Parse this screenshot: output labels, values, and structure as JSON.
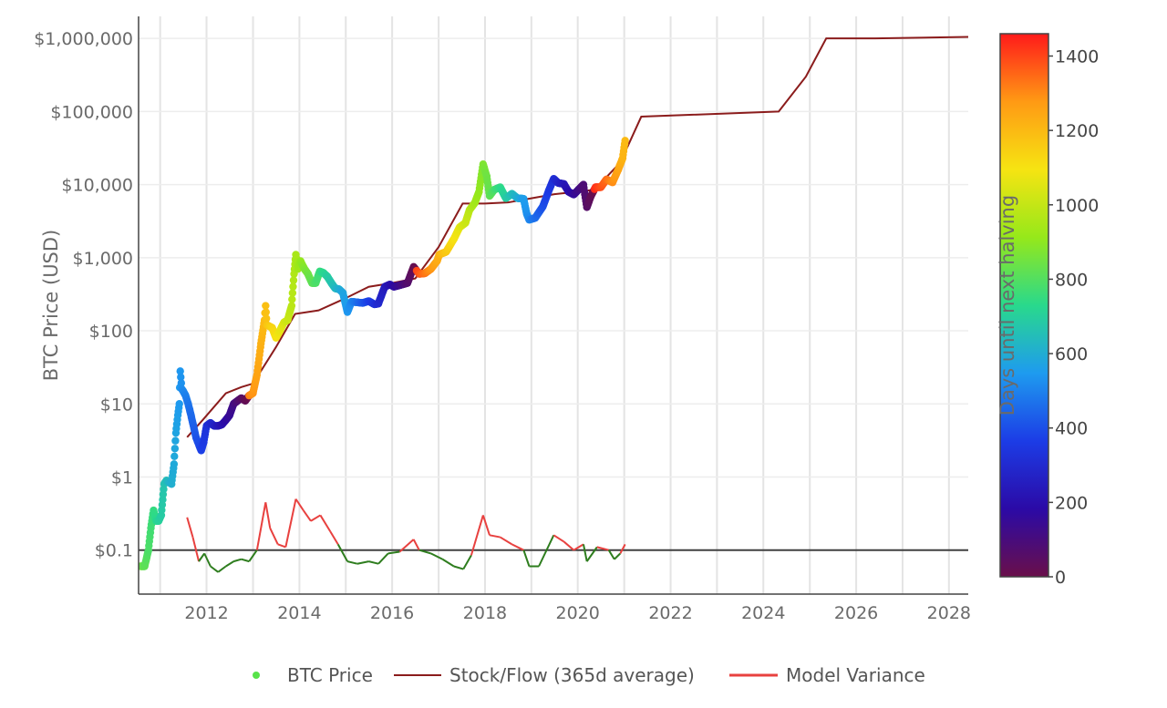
{
  "chart_data": {
    "type": "scatter",
    "title": "",
    "xlabel": "",
    "ylabel": "BTC Price (USD)",
    "y_scale": "log",
    "xlim": [
      "2010-07-15",
      "2028-06-01"
    ],
    "ylim": [
      0.025,
      2000000
    ],
    "x_ticks": [
      "2012",
      "2014",
      "2016",
      "2018",
      "2020",
      "2022",
      "2024",
      "2026",
      "2028"
    ],
    "y_ticks": [
      {
        "value": 0.1,
        "label": "$0.1"
      },
      {
        "value": 1,
        "label": "$1"
      },
      {
        "value": 10,
        "label": "$10"
      },
      {
        "value": 100,
        "label": "$100"
      },
      {
        "value": 1000,
        "label": "$1,000"
      },
      {
        "value": 10000,
        "label": "$10,000"
      },
      {
        "value": 100000,
        "label": "$100,000"
      },
      {
        "value": 1000000,
        "label": "$1,000,000"
      }
    ],
    "grid": true,
    "reference_line": {
      "y": 0.1,
      "color": "#404040"
    },
    "colorbar": {
      "title": "Days until next halving",
      "min": 0,
      "max": 1460,
      "ticks": [
        "0",
        "200",
        "400",
        "600",
        "800",
        "1000",
        "1200",
        "1400"
      ],
      "colors": [
        "#6a0f4a",
        "#2b0aa6",
        "#1c3ce6",
        "#1e9bef",
        "#29d98c",
        "#96e81a",
        "#f6e412",
        "#ff9a14",
        "#ff1a1a"
      ]
    },
    "legend": {
      "position": "bottom"
    },
    "series": [
      {
        "name": "BTC Price",
        "kind": "scatter",
        "color_by": "days until next halving",
        "legend_color": "#58e34a",
        "points": [
          [
            "2010-08-01",
            0.06
          ],
          [
            "2010-09-01",
            0.06
          ],
          [
            "2010-10-01",
            0.1
          ],
          [
            "2010-10-20",
            0.2
          ],
          [
            "2010-11-10",
            0.35
          ],
          [
            "2010-12-01",
            0.25
          ],
          [
            "2010-12-20",
            0.25
          ],
          [
            "2011-01-10",
            0.3
          ],
          [
            "2011-02-01",
            0.8
          ],
          [
            "2011-02-20",
            0.9
          ],
          [
            "2011-03-10",
            0.85
          ],
          [
            "2011-04-01",
            0.8
          ],
          [
            "2011-04-20",
            1.5
          ],
          [
            "2011-05-05",
            4
          ],
          [
            "2011-05-20",
            7
          ],
          [
            "2011-06-01",
            10
          ],
          [
            "2011-06-08",
            28
          ],
          [
            "2011-06-20",
            16
          ],
          [
            "2011-07-01",
            15
          ],
          [
            "2011-07-20",
            13
          ],
          [
            "2011-08-10",
            10
          ],
          [
            "2011-09-01",
            7
          ],
          [
            "2011-09-20",
            5
          ],
          [
            "2011-10-10",
            3.5
          ],
          [
            "2011-11-01",
            2.8
          ],
          [
            "2011-11-20",
            2.3
          ],
          [
            "2011-12-10",
            3
          ],
          [
            "2012-01-01",
            5
          ],
          [
            "2012-02-01",
            5.5
          ],
          [
            "2012-03-01",
            5
          ],
          [
            "2012-04-01",
            5
          ],
          [
            "2012-05-01",
            5.2
          ],
          [
            "2012-06-01",
            6
          ],
          [
            "2012-07-01",
            7
          ],
          [
            "2012-08-01",
            10
          ],
          [
            "2012-09-01",
            11
          ],
          [
            "2012-10-01",
            12
          ],
          [
            "2012-11-01",
            11
          ],
          [
            "2012-12-01",
            13
          ],
          [
            "2013-01-01",
            14
          ],
          [
            "2013-02-01",
            25
          ],
          [
            "2013-03-01",
            60
          ],
          [
            "2013-04-01",
            140
          ],
          [
            "2013-04-10",
            220
          ],
          [
            "2013-04-20",
            120
          ],
          [
            "2013-05-10",
            115
          ],
          [
            "2013-06-01",
            110
          ],
          [
            "2013-07-01",
            80
          ],
          [
            "2013-08-01",
            100
          ],
          [
            "2013-09-01",
            130
          ],
          [
            "2013-10-01",
            140
          ],
          [
            "2013-11-01",
            220
          ],
          [
            "2013-11-20",
            600
          ],
          [
            "2013-12-04",
            1100
          ],
          [
            "2013-12-20",
            700
          ],
          [
            "2014-01-10",
            900
          ],
          [
            "2014-02-10",
            700
          ],
          [
            "2014-03-10",
            600
          ],
          [
            "2014-04-10",
            450
          ],
          [
            "2014-05-10",
            450
          ],
          [
            "2014-06-10",
            650
          ],
          [
            "2014-07-10",
            620
          ],
          [
            "2014-08-10",
            550
          ],
          [
            "2014-09-10",
            450
          ],
          [
            "2014-10-10",
            380
          ],
          [
            "2014-11-10",
            370
          ],
          [
            "2014-12-10",
            330
          ],
          [
            "2015-01-14",
            180
          ],
          [
            "2015-02-15",
            250
          ],
          [
            "2015-04-01",
            245
          ],
          [
            "2015-05-15",
            240
          ],
          [
            "2015-07-01",
            255
          ],
          [
            "2015-08-15",
            230
          ],
          [
            "2015-09-15",
            235
          ],
          [
            "2015-11-04",
            400
          ],
          [
            "2015-12-15",
            430
          ],
          [
            "2016-01-15",
            400
          ],
          [
            "2016-03-01",
            420
          ],
          [
            "2016-05-01",
            450
          ],
          [
            "2016-06-18",
            750
          ],
          [
            "2016-08-01",
            600
          ],
          [
            "2016-09-15",
            610
          ],
          [
            "2016-11-01",
            700
          ],
          [
            "2016-12-20",
            900
          ],
          [
            "2017-01-05",
            1100
          ],
          [
            "2017-03-01",
            1200
          ],
          [
            "2017-05-01",
            1800
          ],
          [
            "2017-06-15",
            2600
          ],
          [
            "2017-08-01",
            3000
          ],
          [
            "2017-09-01",
            4500
          ],
          [
            "2017-10-15",
            5700
          ],
          [
            "2017-11-15",
            8000
          ],
          [
            "2017-12-17",
            19000
          ],
          [
            "2018-01-15",
            13000
          ],
          [
            "2018-02-06",
            7000
          ],
          [
            "2018-03-15",
            8500
          ],
          [
            "2018-05-01",
            9200
          ],
          [
            "2018-06-15",
            6500
          ],
          [
            "2018-08-01",
            7500
          ],
          [
            "2018-09-15",
            6500
          ],
          [
            "2018-11-01",
            6400
          ],
          [
            "2018-11-25",
            4000
          ],
          [
            "2018-12-15",
            3300
          ],
          [
            "2019-02-01",
            3500
          ],
          [
            "2019-04-01",
            5000
          ],
          [
            "2019-05-15",
            8000
          ],
          [
            "2019-06-26",
            12000
          ],
          [
            "2019-08-01",
            10500
          ],
          [
            "2019-09-15",
            10200
          ],
          [
            "2019-10-20",
            8000
          ],
          [
            "2019-12-01",
            7300
          ],
          [
            "2020-01-15",
            8800
          ],
          [
            "2020-02-15",
            10000
          ],
          [
            "2020-03-13",
            4900
          ],
          [
            "2020-04-15",
            7000
          ],
          [
            "2020-05-20",
            9200
          ],
          [
            "2020-07-01",
            9200
          ],
          [
            "2020-08-15",
            11800
          ],
          [
            "2020-10-01",
            10700
          ],
          [
            "2020-11-15",
            16000
          ],
          [
            "2020-12-20",
            23000
          ],
          [
            "2021-01-08",
            40000
          ]
        ]
      },
      {
        "name": "Stock/Flow (365d average)",
        "kind": "line",
        "color": "#8b1c1c",
        "points": [
          [
            "2011-08-01",
            3.5
          ],
          [
            "2011-12-01",
            6
          ],
          [
            "2012-06-01",
            14
          ],
          [
            "2012-10-01",
            17
          ],
          [
            "2013-01-01",
            19
          ],
          [
            "2013-07-01",
            60
          ],
          [
            "2013-11-28",
            170
          ],
          [
            "2014-06-01",
            190
          ],
          [
            "2015-01-01",
            280
          ],
          [
            "2015-07-01",
            400
          ],
          [
            "2016-01-01",
            450
          ],
          [
            "2016-07-01",
            520
          ],
          [
            "2017-01-01",
            1400
          ],
          [
            "2017-07-09",
            5500
          ],
          [
            "2018-01-01",
            5500
          ],
          [
            "2018-07-01",
            5700
          ],
          [
            "2019-01-01",
            6500
          ],
          [
            "2019-07-01",
            7400
          ],
          [
            "2020-01-01",
            8000
          ],
          [
            "2020-05-11",
            8500
          ],
          [
            "2020-12-01",
            20000
          ],
          [
            "2021-05-15",
            85000
          ],
          [
            "2022-06-01",
            90000
          ],
          [
            "2024-05-01",
            100000
          ],
          [
            "2024-12-01",
            300000
          ],
          [
            "2025-05-10",
            1000000
          ],
          [
            "2026-06-01",
            1000000
          ],
          [
            "2028-06-01",
            1050000
          ]
        ]
      },
      {
        "name": "Model Variance",
        "kind": "line",
        "color": "#e8413f",
        "below_reference_color": "#2e7d1e",
        "points": [
          [
            "2011-08-01",
            0.28
          ],
          [
            "2011-09-15",
            0.15
          ],
          [
            "2011-11-01",
            0.07
          ],
          [
            "2011-12-15",
            0.09
          ],
          [
            "2012-02-01",
            0.06
          ],
          [
            "2012-04-01",
            0.05
          ],
          [
            "2012-06-01",
            0.06
          ],
          [
            "2012-08-01",
            0.07
          ],
          [
            "2012-10-01",
            0.075
          ],
          [
            "2012-12-01",
            0.07
          ],
          [
            "2013-02-01",
            0.1
          ],
          [
            "2013-04-10",
            0.45
          ],
          [
            "2013-05-15",
            0.2
          ],
          [
            "2013-07-15",
            0.12
          ],
          [
            "2013-09-15",
            0.11
          ],
          [
            "2013-12-04",
            0.5
          ],
          [
            "2014-02-01",
            0.35
          ],
          [
            "2014-04-01",
            0.25
          ],
          [
            "2014-06-15",
            0.3
          ],
          [
            "2014-09-01",
            0.18
          ],
          [
            "2014-11-01",
            0.12
          ],
          [
            "2015-01-14",
            0.07
          ],
          [
            "2015-04-01",
            0.065
          ],
          [
            "2015-07-01",
            0.07
          ],
          [
            "2015-09-15",
            0.065
          ],
          [
            "2015-12-01",
            0.09
          ],
          [
            "2016-03-01",
            0.095
          ],
          [
            "2016-06-18",
            0.14
          ],
          [
            "2016-08-01",
            0.1
          ],
          [
            "2016-11-01",
            0.09
          ],
          [
            "2017-02-01",
            0.075
          ],
          [
            "2017-05-01",
            0.06
          ],
          [
            "2017-07-15",
            0.055
          ],
          [
            "2017-09-15",
            0.085
          ],
          [
            "2017-12-17",
            0.3
          ],
          [
            "2018-02-06",
            0.16
          ],
          [
            "2018-05-01",
            0.15
          ],
          [
            "2018-08-01",
            0.12
          ],
          [
            "2018-11-01",
            0.1
          ],
          [
            "2018-12-15",
            0.06
          ],
          [
            "2019-03-01",
            0.06
          ],
          [
            "2019-06-26",
            0.16
          ],
          [
            "2019-09-15",
            0.13
          ],
          [
            "2019-12-01",
            0.1
          ],
          [
            "2020-02-15",
            0.12
          ],
          [
            "2020-03-13",
            0.07
          ],
          [
            "2020-06-01",
            0.11
          ],
          [
            "2020-09-01",
            0.1
          ],
          [
            "2020-10-15",
            0.075
          ],
          [
            "2020-12-01",
            0.09
          ],
          [
            "2021-01-08",
            0.12
          ]
        ]
      }
    ]
  }
}
